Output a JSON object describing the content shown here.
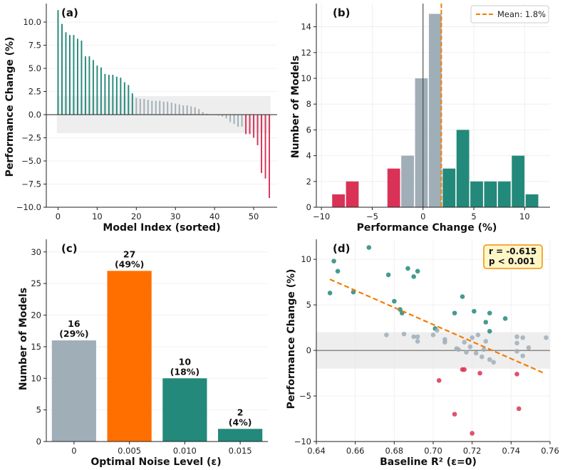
{
  "colors": {
    "positive": "#23897a",
    "neutral": "#a0aeb8",
    "negative": "#d93256",
    "highlight": "#ff6f00",
    "mean_line": "#f57c00",
    "trend_line": "#f57c00",
    "band": "#e8e8e8",
    "stat_box_fill": "#fff6c8",
    "stat_box_edge": "#f4a026"
  },
  "chart_data": [
    {
      "id": "a",
      "type": "bar",
      "panel_label": "(a)",
      "xlabel": "Model Index (sorted)",
      "ylabel": "Performance Change (%)",
      "xlim": [
        -3,
        56
      ],
      "ylim": [
        -10,
        12
      ],
      "xticks": [
        "0",
        "10",
        "20",
        "30",
        "40",
        "50"
      ],
      "yticks": [
        "−10.0",
        "−7.5",
        "−5.0",
        "−2.5",
        "0.0",
        "2.5",
        "5.0",
        "7.5",
        "10.0"
      ],
      "neutral_band": [
        -2,
        2
      ],
      "values": [
        11.3,
        9.8,
        8.9,
        8.6,
        8.6,
        8.2,
        8.0,
        6.3,
        6.3,
        5.9,
        5.3,
        5.1,
        4.4,
        4.3,
        4.3,
        4.1,
        4.0,
        3.5,
        3.2,
        2.3,
        1.8,
        1.7,
        1.7,
        1.6,
        1.5,
        1.5,
        1.5,
        1.4,
        1.4,
        1.3,
        1.2,
        1.1,
        1.0,
        1.0,
        0.9,
        0.8,
        0.6,
        0.3,
        0.1,
        0.05,
        0.0,
        -0.1,
        -0.2,
        -0.4,
        -0.8,
        -1.0,
        -1.3,
        -1.3,
        -2.1,
        -2.1,
        -2.5,
        -3.3,
        -6.3,
        -6.9,
        -9.0
      ]
    },
    {
      "id": "b",
      "type": "histogram",
      "panel_label": "(b)",
      "xlabel": "Performance Change (%)",
      "ylabel": "Number of Models",
      "xlim": [
        -10.5,
        12.5
      ],
      "ylim": [
        0,
        15.8
      ],
      "xticks": [
        "−10",
        "−5",
        "0",
        "5",
        "10"
      ],
      "yticks": [
        "0",
        "2",
        "4",
        "6",
        "8",
        "10",
        "12",
        "14"
      ],
      "bin_width": 1.36,
      "bins": [
        {
          "left": -9.0,
          "count": 1,
          "group": "negative"
        },
        {
          "left": -7.64,
          "count": 2,
          "group": "negative"
        },
        {
          "left": -3.56,
          "count": 3,
          "group": "negative"
        },
        {
          "left": -2.2,
          "count": 4,
          "group": "neutral"
        },
        {
          "left": -0.84,
          "count": 10,
          "group": "neutral"
        },
        {
          "left": 0.52,
          "count": 15,
          "group": "neutral"
        },
        {
          "left": 1.88,
          "count": 3,
          "group": "positive"
        },
        {
          "left": 3.24,
          "count": 6,
          "group": "positive"
        },
        {
          "left": 4.6,
          "count": 2,
          "group": "positive"
        },
        {
          "left": 5.96,
          "count": 2,
          "group": "positive"
        },
        {
          "left": 7.32,
          "count": 2,
          "group": "positive"
        },
        {
          "left": 8.68,
          "count": 4,
          "group": "positive"
        },
        {
          "left": 10.04,
          "count": 1,
          "group": "positive"
        }
      ],
      "mean": 1.8,
      "legend": "Mean: 1.8%"
    },
    {
      "id": "c",
      "type": "bar",
      "panel_label": "(c)",
      "xlabel": "Optimal Noise Level (ε)",
      "ylabel": "Number of Models",
      "categories": [
        "0",
        "0.005",
        "0.010",
        "0.015"
      ],
      "values": [
        16,
        27,
        10,
        2
      ],
      "labels": [
        [
          "16",
          "(29%)"
        ],
        [
          "27",
          "(49%)"
        ],
        [
          "10",
          "(18%)"
        ],
        [
          "2",
          "(4%)"
        ]
      ],
      "bar_colors": [
        "neutral",
        "highlight",
        "positive",
        "positive"
      ],
      "ylim": [
        0,
        32
      ],
      "yticks": [
        "0",
        "5",
        "10",
        "15",
        "20",
        "25",
        "30"
      ]
    },
    {
      "id": "d",
      "type": "scatter",
      "panel_label": "(d)",
      "xlabel": "Baseline R² (ε=0)",
      "ylabel": "Performance Change (%)",
      "xlim": [
        0.64,
        0.76
      ],
      "ylim": [
        -10,
        12.2
      ],
      "xticks": [
        "0.64",
        "0.66",
        "0.68",
        "0.70",
        "0.72",
        "0.74",
        "0.76"
      ],
      "yticks": [
        "−10",
        "−5",
        "0",
        "5",
        "10"
      ],
      "neutral_band": [
        -2,
        2
      ],
      "points": [
        [
          0.647,
          6.3,
          "positive"
        ],
        [
          0.649,
          9.8,
          "positive"
        ],
        [
          0.651,
          8.7,
          "positive"
        ],
        [
          0.659,
          6.4,
          "positive"
        ],
        [
          0.667,
          11.3,
          "positive"
        ],
        [
          0.677,
          8.3,
          "positive"
        ],
        [
          0.68,
          5.4,
          "positive"
        ],
        [
          0.683,
          4.5,
          "positive"
        ],
        [
          0.684,
          4.1,
          "positive"
        ],
        [
          0.687,
          9.0,
          "positive"
        ],
        [
          0.69,
          8.1,
          "positive"
        ],
        [
          0.692,
          8.7,
          "positive"
        ],
        [
          0.701,
          2.4,
          "positive"
        ],
        [
          0.711,
          4.1,
          "positive"
        ],
        [
          0.715,
          5.9,
          "positive"
        ],
        [
          0.721,
          4.3,
          "positive"
        ],
        [
          0.727,
          3.1,
          "positive"
        ],
        [
          0.729,
          4.1,
          "positive"
        ],
        [
          0.729,
          2.1,
          "positive"
        ],
        [
          0.737,
          3.5,
          "positive"
        ],
        [
          0.676,
          1.7,
          "neutral"
        ],
        [
          0.685,
          1.8,
          "neutral"
        ],
        [
          0.69,
          1.5,
          "neutral"
        ],
        [
          0.692,
          1.0,
          "neutral"
        ],
        [
          0.692,
          1.5,
          "neutral"
        ],
        [
          0.7,
          1.7,
          "neutral"
        ],
        [
          0.702,
          2.2,
          "neutral"
        ],
        [
          0.706,
          1.2,
          "neutral"
        ],
        [
          0.706,
          0.9,
          "neutral"
        ],
        [
          0.712,
          0.2,
          "neutral"
        ],
        [
          0.713,
          0.1,
          "neutral"
        ],
        [
          0.716,
          0.9,
          "neutral"
        ],
        [
          0.717,
          -0.2,
          "neutral"
        ],
        [
          0.719,
          0.4,
          "neutral"
        ],
        [
          0.72,
          1.4,
          "neutral"
        ],
        [
          0.722,
          -0.3,
          "neutral"
        ],
        [
          0.723,
          1.7,
          "neutral"
        ],
        [
          0.725,
          -0.7,
          "neutral"
        ],
        [
          0.726,
          0.1,
          "neutral"
        ],
        [
          0.727,
          1.0,
          "neutral"
        ],
        [
          0.729,
          -1.0,
          "neutral"
        ],
        [
          0.731,
          -1.3,
          "neutral"
        ],
        [
          0.743,
          1.5,
          "neutral"
        ],
        [
          0.743,
          0.8,
          "neutral"
        ],
        [
          0.743,
          -0.1,
          "neutral"
        ],
        [
          0.746,
          -0.6,
          "neutral"
        ],
        [
          0.746,
          1.4,
          "neutral"
        ],
        [
          0.749,
          0.3,
          "neutral"
        ],
        [
          0.758,
          1.4,
          "neutral"
        ],
        [
          0.703,
          -3.3,
          "negative"
        ],
        [
          0.711,
          -7.0,
          "negative"
        ],
        [
          0.715,
          -2.1,
          "negative"
        ],
        [
          0.716,
          -2.1,
          "negative"
        ],
        [
          0.72,
          -9.1,
          "negative"
        ],
        [
          0.724,
          -2.5,
          "negative"
        ],
        [
          0.743,
          -2.6,
          "negative"
        ],
        [
          0.744,
          -6.4,
          "negative"
        ]
      ],
      "trend": {
        "x": [
          0.647,
          0.757
        ],
        "y": [
          7.8,
          -2.5
        ]
      },
      "stats": [
        "r = -0.615",
        "p < 0.001"
      ]
    }
  ]
}
